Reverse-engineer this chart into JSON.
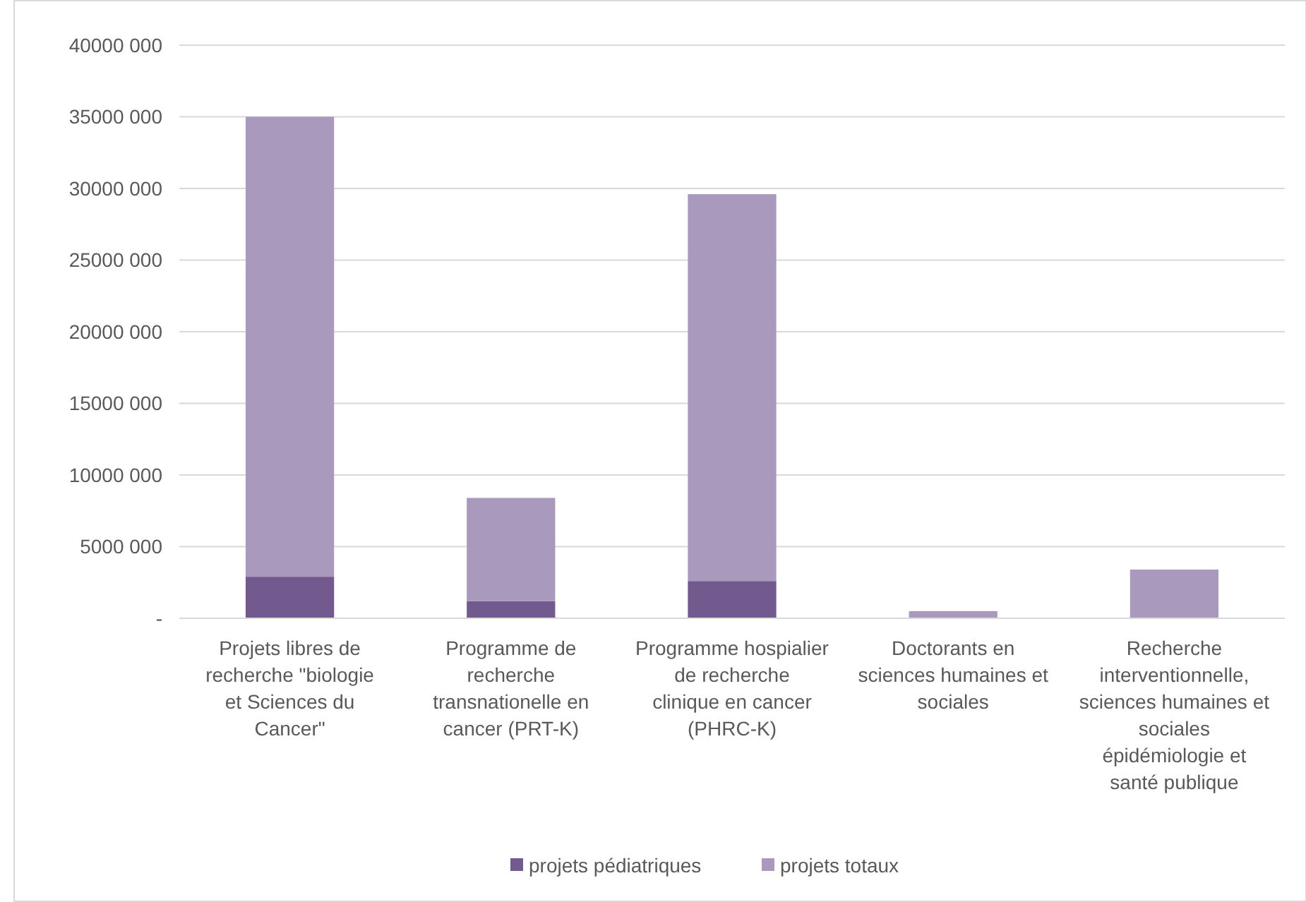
{
  "chart_data": {
    "type": "bar",
    "stacked": true,
    "categories": [
      "Projets libres de recherche \"biologie et Sciences du Cancer\"",
      "Programme de recherche transnationelle en cancer (PRT-K)",
      "Programme hospialier de recherche clinique en cancer (PHRC-K)",
      "Doctorants en sciences humaines et sociales",
      "Recherche interventionnelle, sciences humaines et sociales épidémiologie et santé publique"
    ],
    "series": [
      {
        "name": "projets pédiatriques",
        "color": "#725a8f",
        "values": [
          2900000,
          1200000,
          2600000,
          0,
          0
        ]
      },
      {
        "name": "projets totaux",
        "color": "#a99abd",
        "values": [
          32100000,
          7200000,
          27000000,
          500000,
          3400000
        ]
      }
    ],
    "ylim": [
      0,
      40000000
    ],
    "yticks": [
      {
        "value": 0,
        "label": "-"
      },
      {
        "value": 5000000,
        "label": "5000 000"
      },
      {
        "value": 10000000,
        "label": "10000 000"
      },
      {
        "value": 15000000,
        "label": "15000 000"
      },
      {
        "value": 20000000,
        "label": "20000 000"
      },
      {
        "value": 25000000,
        "label": "25000 000"
      },
      {
        "value": 30000000,
        "label": "30000 000"
      },
      {
        "value": 35000000,
        "label": "35000 000"
      },
      {
        "value": 40000000,
        "label": "40000 000"
      }
    ],
    "grid": "y",
    "legend": "bottom"
  }
}
